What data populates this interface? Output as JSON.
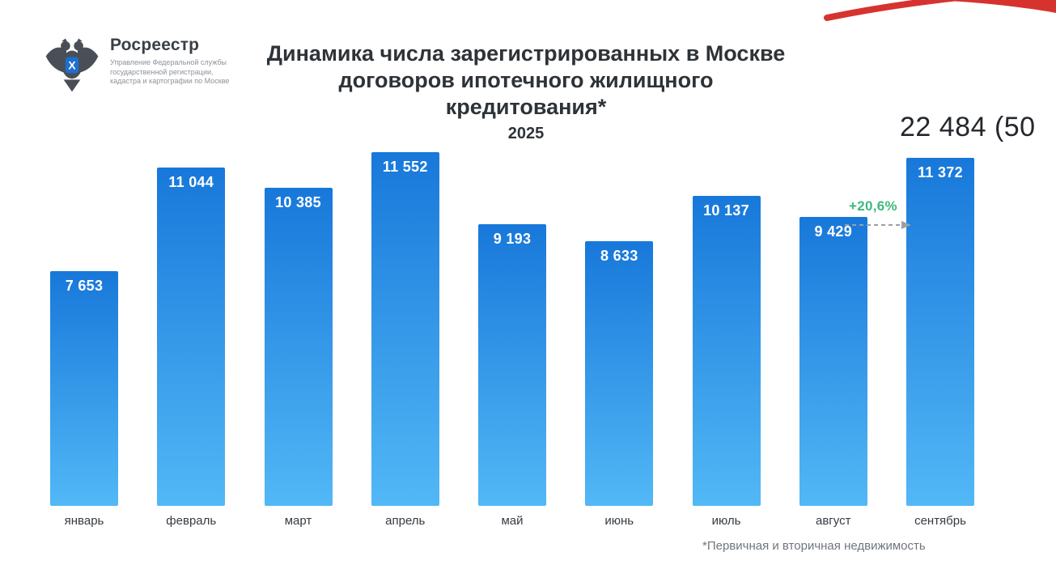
{
  "logo": {
    "org_name": "Росреестр",
    "subtitle": "Управление Федеральной службы государственной регистрации, кадастра и картографии по Москве"
  },
  "header": {
    "title_line1": "Динамика числа зарегистрированных в Москве",
    "title_line2": "договоров ипотечного жилищного кредитования*",
    "year": "2025",
    "total": "22 484 (50"
  },
  "chart_data": {
    "type": "bar",
    "title": "Динамика числа зарегистрированных в Москве договоров ипотечного жилищного кредитования*, 2025",
    "categories": [
      "январь",
      "февраль",
      "март",
      "апрель",
      "май",
      "июнь",
      "июль",
      "август",
      "сентябрь"
    ],
    "values": [
      7653,
      11044,
      10385,
      11552,
      9193,
      8633,
      10137,
      9429,
      11372
    ],
    "labels": [
      "7 653",
      "11 044",
      "10 385",
      "11 552",
      "9 193",
      "8 633",
      "10 137",
      "9 429",
      "11 372"
    ],
    "xlabel": "",
    "ylabel": "",
    "ylim": [
      0,
      12000
    ],
    "grid": false,
    "legend": "none",
    "bar_color_top": "#1878da",
    "bar_color_bottom": "#52b8f6",
    "annotation": {
      "text": "+20,6%",
      "color": "#3cba7c",
      "from": "август",
      "to": "сентябрь"
    }
  },
  "footnote": "*Первичная и вторичная недвижимость",
  "colors": {
    "accent_red": "#d6332f",
    "title_text": "#2e3338",
    "value_text": "#ffffff"
  }
}
